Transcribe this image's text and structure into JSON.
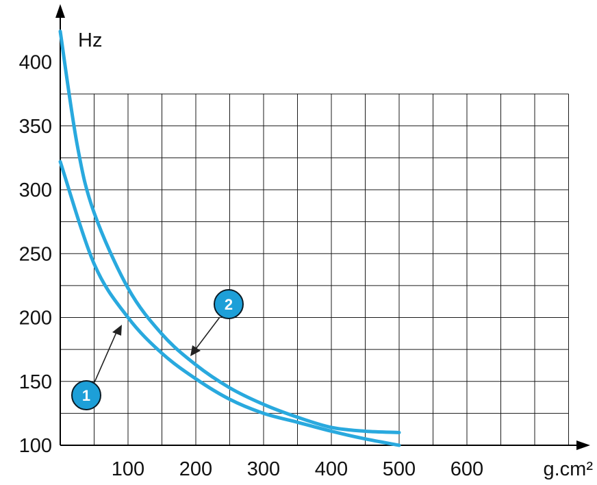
{
  "chart_data": {
    "type": "line",
    "title": "",
    "xlabel": "g.cm²",
    "ylabel": "Hz",
    "xlim": [
      0,
      750
    ],
    "ylim": [
      100,
      425
    ],
    "xticks": [
      100,
      200,
      300,
      400,
      500,
      600
    ],
    "yticks": [
      100,
      150,
      200,
      250,
      300,
      350,
      400
    ],
    "grid": true,
    "series": [
      {
        "name": "1",
        "x": [
          0,
          50,
          100,
          150,
          200,
          250,
          300,
          350,
          400,
          450,
          500
        ],
        "y": [
          322,
          242,
          200,
          172,
          152,
          136,
          125,
          118,
          111,
          105,
          100
        ]
      },
      {
        "name": "2",
        "x": [
          0,
          25,
          50,
          100,
          150,
          200,
          250,
          300,
          350,
          400,
          450,
          500
        ],
        "y": [
          424,
          335,
          282,
          223,
          187,
          163,
          145,
          132,
          122,
          114,
          111,
          110
        ]
      }
    ],
    "colors": {
      "curve": "#29a9de",
      "badge": "#1d9fd8"
    }
  }
}
